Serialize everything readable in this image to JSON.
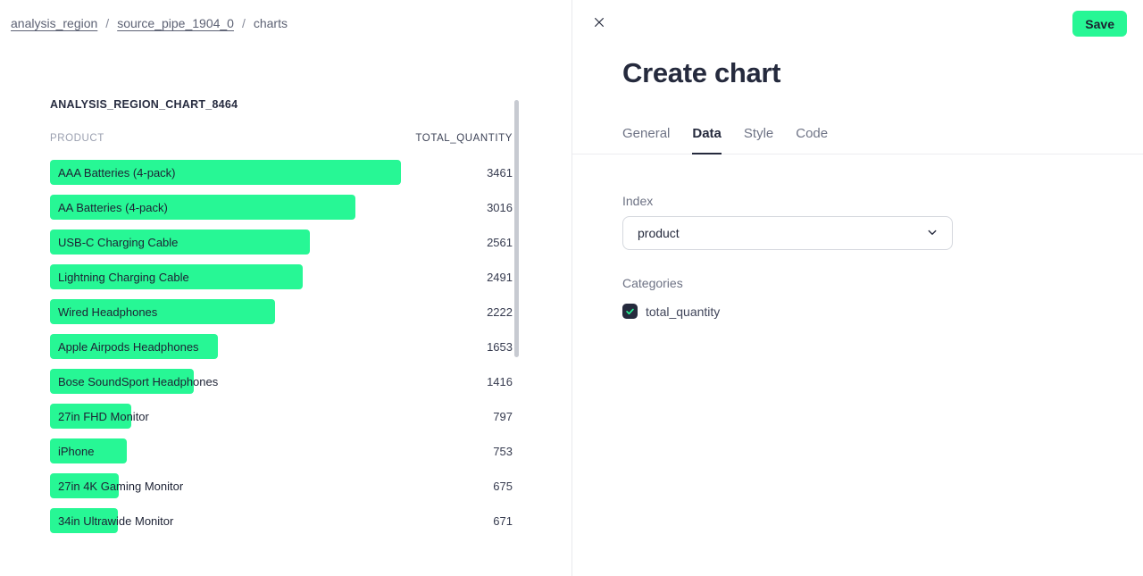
{
  "colors": {
    "accent_green": "#27f795",
    "ink": "#252a3d",
    "muted_text": "#6d7284",
    "bar_green": "#27f795"
  },
  "breadcrumb": {
    "items": [
      {
        "label": "analysis_region",
        "link": true
      },
      {
        "label": "source_pipe_1904_0",
        "link": true
      },
      {
        "label": "charts",
        "link": false
      }
    ],
    "separator": "/"
  },
  "chart": {
    "title": "ANALYSIS_REGION_CHART_8464",
    "columns": {
      "index": "PRODUCT",
      "value": "TOTAL_QUANTITY"
    }
  },
  "chart_data": {
    "type": "bar",
    "orientation": "horizontal",
    "title": "ANALYSIS_REGION_CHART_8464",
    "xlabel": "TOTAL_QUANTITY",
    "ylabel": "PRODUCT",
    "xlim": [
      0,
      3461
    ],
    "grid": false,
    "legend": false,
    "categories": [
      "AAA Batteries (4-pack)",
      "AA Batteries (4-pack)",
      "USB-C Charging Cable",
      "Lightning Charging Cable",
      "Wired Headphones",
      "Apple Airpods Headphones",
      "Bose SoundSport Headphones",
      "27in FHD Monitor",
      "iPhone",
      "27in 4K Gaming Monitor",
      "34in Ultrawide Monitor"
    ],
    "values": [
      3461,
      3016,
      2561,
      2491,
      2222,
      1653,
      1416,
      797,
      753,
      675,
      671
    ]
  },
  "panel": {
    "title": "Create chart",
    "save_label": "Save",
    "tabs": [
      {
        "label": "General",
        "active": false
      },
      {
        "label": "Data",
        "active": true
      },
      {
        "label": "Style",
        "active": false
      },
      {
        "label": "Code",
        "active": false
      }
    ],
    "index_label": "Index",
    "index_value": "product",
    "categories_label": "Categories",
    "category_options": [
      {
        "label": "total_quantity",
        "checked": true
      }
    ]
  }
}
